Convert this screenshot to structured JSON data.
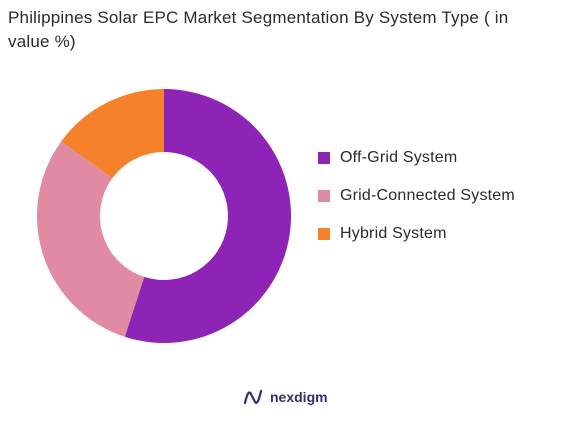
{
  "chart_data": {
    "type": "pie",
    "variant": "donut",
    "title": "Philippines Solar EPC Market Segmentation By System Type ( in value %)",
    "categories": [
      "Off-Grid System",
      "Grid-Connected System",
      "Hybrid System"
    ],
    "values": [
      55,
      30,
      15
    ],
    "unit": "%",
    "colors": [
      "#8e24b6",
      "#e08aa4",
      "#f5822a"
    ],
    "legend_position": "right",
    "start_angle_deg": 0,
    "direction": "clockwise"
  },
  "brand": {
    "name": "nexdigm",
    "logo_icon": "nexdigm-logo-icon",
    "color": "#3b2a6f"
  }
}
